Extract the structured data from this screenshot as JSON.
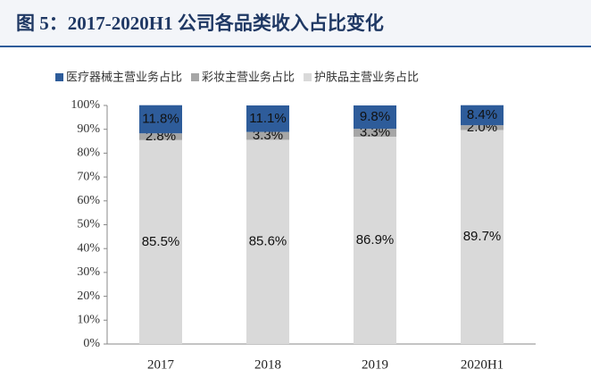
{
  "chart_data": {
    "type": "bar",
    "stacked": true,
    "title": "图 5：2017-2020H1 公司各品类收入占比变化",
    "categories": [
      "2017",
      "2018",
      "2019",
      "2020H1"
    ],
    "series": [
      {
        "name": "医疗器械主营业务占比",
        "color": "#2e5c9a",
        "values": [
          11.8,
          11.1,
          9.8,
          8.4
        ],
        "value_labels": [
          "11.8%",
          "11.1%",
          "9.8%",
          "8.4%"
        ]
      },
      {
        "name": "彩妆主营业务占比",
        "color": "#a6a6a6",
        "values": [
          2.8,
          3.3,
          3.3,
          2.0
        ],
        "value_labels": [
          "2.8%",
          "3.3%",
          "3.3%",
          "2.0%"
        ]
      },
      {
        "name": "护肤品主营业务占比",
        "color": "#d9d9d9",
        "values": [
          85.5,
          85.6,
          86.9,
          89.7
        ],
        "value_labels": [
          "85.5%",
          "85.6%",
          "86.9%",
          "89.7%"
        ]
      }
    ],
    "ylim": [
      0,
      100
    ],
    "yticks": [
      {
        "value": 0,
        "label": "0%"
      },
      {
        "value": 10,
        "label": "10%"
      },
      {
        "value": 20,
        "label": "20%"
      },
      {
        "value": 30,
        "label": "30%"
      },
      {
        "value": 40,
        "label": "40%"
      },
      {
        "value": 50,
        "label": "50%"
      },
      {
        "value": 60,
        "label": "60%"
      },
      {
        "value": 70,
        "label": "70%"
      },
      {
        "value": 80,
        "label": "80%"
      },
      {
        "value": 90,
        "label": "90%"
      },
      {
        "value": 100,
        "label": "100%"
      }
    ],
    "grid": false,
    "legend": "top"
  }
}
